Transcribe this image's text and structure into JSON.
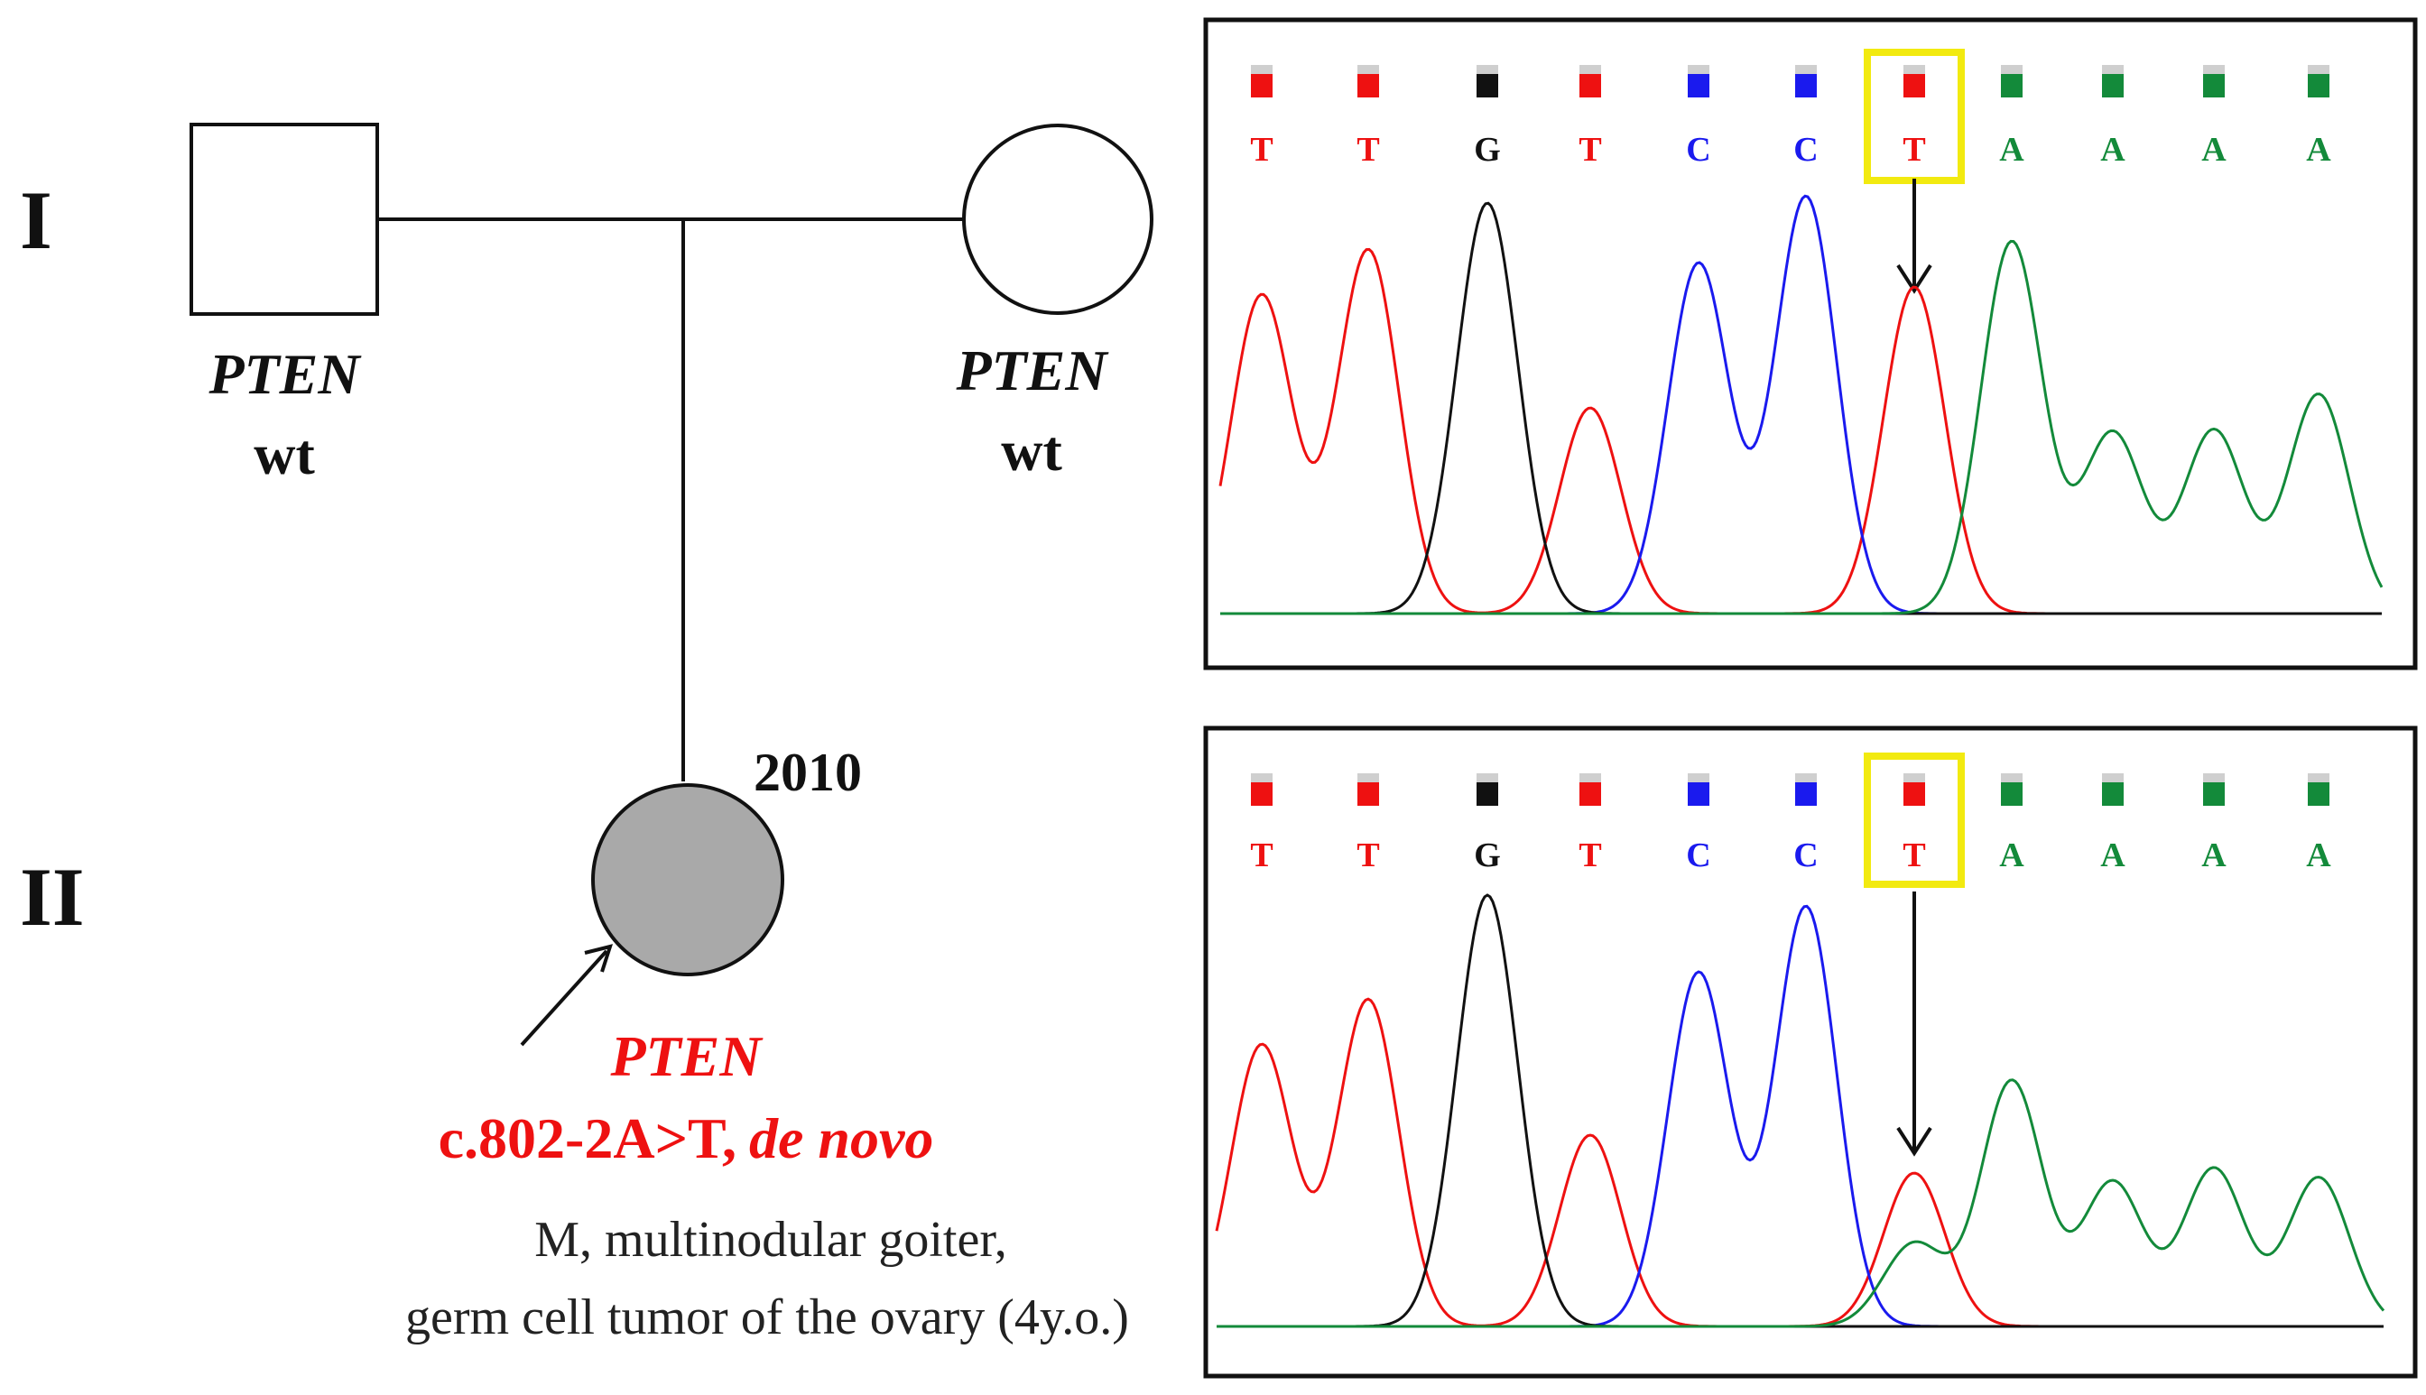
{
  "colors": {
    "T": "#ee1111",
    "C": "#1a1aee",
    "G": "#111111",
    "A": "#138a3a",
    "highlight": "#f2ea10",
    "affected_fill": "#a9a9a9",
    "mutation_text": "#ee1111"
  },
  "pedigree": {
    "generation_I": "I",
    "generation_II": "II",
    "father": {
      "gene": "PTEN",
      "genotype": "wt"
    },
    "mother": {
      "gene": "PTEN",
      "genotype": "wt"
    },
    "proband": {
      "year": "2010",
      "gene": "PTEN",
      "mutation": "c.802-2A>T,",
      "inheritance": "de novo",
      "phenotype_line1": "M, multinodular goiter,",
      "phenotype_line2": "germ cell tumor of the ovary (4y.o.)"
    }
  },
  "chromatograms": [
    {
      "panel": "top",
      "bases": [
        "T",
        "T",
        "G",
        "T",
        "C",
        "C",
        "T",
        "A",
        "A",
        "A",
        "A"
      ],
      "highlight_index": 6
    },
    {
      "panel": "bottom",
      "bases": [
        "T",
        "T",
        "G",
        "T",
        "C",
        "C",
        "T",
        "A",
        "A",
        "A",
        "A"
      ],
      "highlight_index": 6
    }
  ]
}
